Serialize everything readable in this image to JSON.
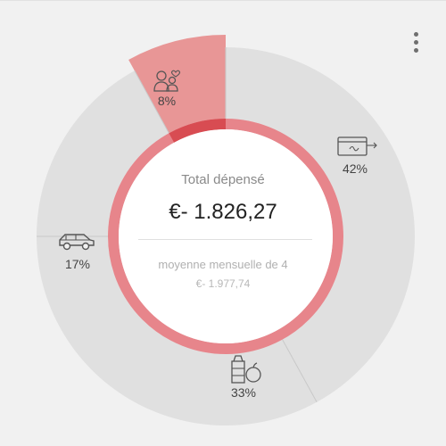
{
  "summary": {
    "title": "Total dépensé",
    "amount": "€- 1.826,27",
    "average_label": "moyenne mensuelle de 4",
    "average_value": "€- 1.977,74"
  },
  "menu": {
    "icon": "more-vert-icon"
  },
  "colors": {
    "highlight": "#e89696",
    "highlight_dark": "#d84c52",
    "inner_ring": "#e7858b",
    "segment": "#e0e0e0",
    "divider": "#c9c9c9"
  },
  "chart_data": {
    "type": "pie",
    "style": "donut",
    "slices": [
      {
        "icon": "payment-card-icon",
        "percent": 42,
        "label": "42%"
      },
      {
        "icon": "groceries-icon",
        "percent": 33,
        "label": "33%"
      },
      {
        "icon": "car-icon",
        "percent": 17,
        "label": "17%"
      },
      {
        "icon": "family-heart-icon",
        "percent": 8,
        "label": "8%",
        "selected": true
      }
    ]
  }
}
